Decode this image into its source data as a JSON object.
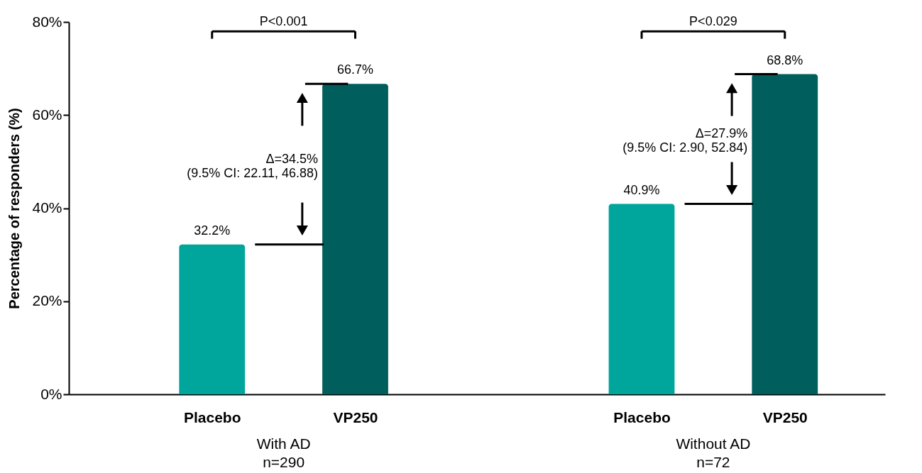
{
  "chart_data": {
    "type": "bar",
    "ylabel": "Percentage of responders (%)",
    "categories": [
      "Placebo",
      "VP250",
      "Placebo",
      "VP250"
    ],
    "values": [
      32.2,
      66.7,
      40.9,
      68.8
    ],
    "colors": [
      "#00a69c",
      "#005e5c",
      "#00a69c",
      "#005e5c"
    ],
    "value_labels": [
      "32.2%",
      "66.7%",
      "40.9%",
      "68.8%"
    ],
    "ylim": [
      0,
      80
    ],
    "yticks": [
      {
        "value": 0,
        "label": "0%"
      },
      {
        "value": 20,
        "label": "20%"
      },
      {
        "value": 40,
        "label": "40%"
      },
      {
        "value": 60,
        "label": "60%"
      },
      {
        "value": 80,
        "label": "80%"
      }
    ],
    "annotations": [
      "P<0.001",
      "P<0.029",
      "Δ=34.5%\n(9.5% CI: 22.11, 46.88)",
      "Δ=27.9%\n(9.5% CI: 2.90, 52.84)",
      "With AD\nn=290",
      "Without AD\nn=72"
    ],
    "grid": false
  }
}
